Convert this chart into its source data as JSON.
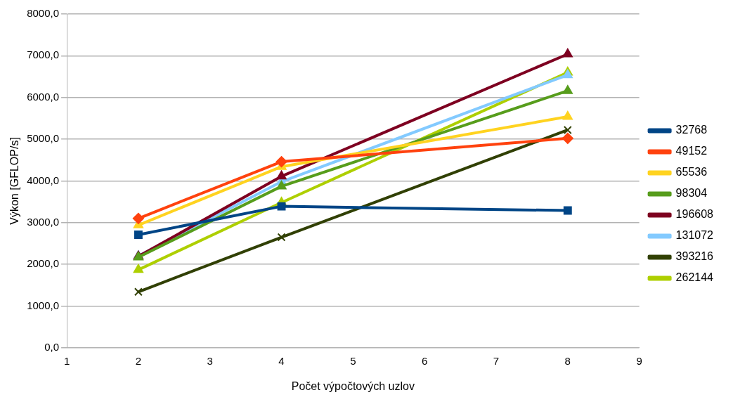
{
  "chart_data": {
    "type": "line",
    "xlabel": "Počet výpočtových uzlov",
    "ylabel": "Výkon [GFLOP/s]",
    "x": [
      2,
      4,
      8
    ],
    "xlim": [
      1,
      9
    ],
    "xticks": [
      1,
      2,
      3,
      4,
      5,
      6,
      7,
      8,
      9
    ],
    "ylim": [
      0,
      8000
    ],
    "yticks": [
      {
        "value": 0,
        "label": "0,0"
      },
      {
        "value": 1000,
        "label": "1000,0"
      },
      {
        "value": 2000,
        "label": "2000,0"
      },
      {
        "value": 3000,
        "label": "3000,0"
      },
      {
        "value": 4000,
        "label": "4000,0"
      },
      {
        "value": 5000,
        "label": "5000,0"
      },
      {
        "value": 6000,
        "label": "6000,0"
      },
      {
        "value": 7000,
        "label": "7000,0"
      },
      {
        "value": 8000,
        "label": "8000,0"
      }
    ],
    "grid": "y",
    "legend": "right",
    "series": [
      {
        "name": "32768",
        "color": "#004586",
        "marker": "square",
        "values": [
          2710,
          3390,
          3290
        ]
      },
      {
        "name": "49152",
        "color": "#ff420e",
        "marker": "diamond",
        "values": [
          3100,
          4460,
          5020
        ]
      },
      {
        "name": "65536",
        "color": "#ffd320",
        "marker": "triangle",
        "values": [
          2940,
          4340,
          5540
        ]
      },
      {
        "name": "98304",
        "color": "#579d1c",
        "marker": "triangle",
        "values": [
          2170,
          3870,
          6160
        ]
      },
      {
        "name": "196608",
        "color": "#7e0021",
        "marker": "triangle",
        "values": [
          2190,
          4110,
          7040
        ]
      },
      {
        "name": "131072",
        "color": "#83caff",
        "marker": "triangle",
        "values": [
          2200,
          3980,
          6540
        ]
      },
      {
        "name": "393216",
        "color": "#314004",
        "marker": "cross",
        "values": [
          1340,
          2650,
          5220
        ]
      },
      {
        "name": "262144",
        "color": "#aecf00",
        "marker": "triangle",
        "values": [
          1870,
          3480,
          6600
        ]
      }
    ]
  }
}
